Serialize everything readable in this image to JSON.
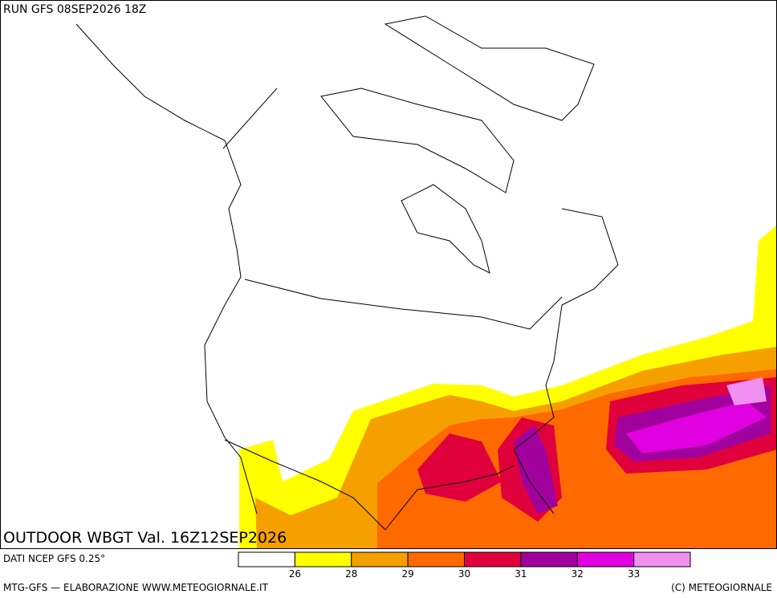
{
  "header": {
    "run": "RUN GFS 08SEP2026 18Z"
  },
  "map": {
    "title": "OUTDOOR WBGT Val. 16Z12SEP2026"
  },
  "legend": {
    "source": "DATI NCEP GFS 0.25°",
    "colors": [
      "#ffffff",
      "#ffff00",
      "#f5a000",
      "#ff6a00",
      "#e0003c",
      "#a0009c",
      "#e000e0",
      "#f090f0"
    ],
    "ticks": [
      26,
      28,
      29,
      30,
      31,
      32,
      33
    ]
  },
  "footer": {
    "left": "MTG-GFS — ELABORAZIONE WWW.METEOGIORNALE.IT",
    "right": "(C) METEOGIORNALE"
  }
}
